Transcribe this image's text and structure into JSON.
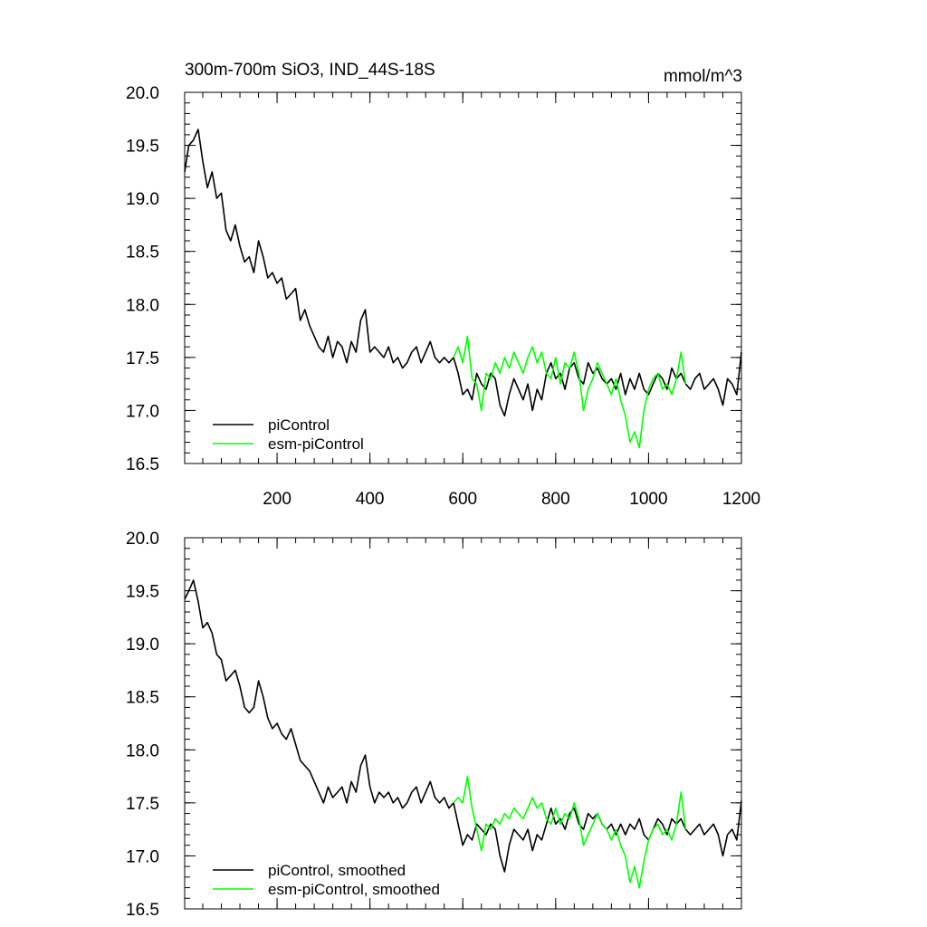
{
  "chart_data": [
    {
      "type": "line",
      "title": "300m-700m SiO3, IND_44S-18S",
      "units": "mmol/m^3",
      "xlim": [
        1,
        1200
      ],
      "ylim": [
        16.5,
        20.0
      ],
      "xticks": [
        200,
        400,
        600,
        800,
        1000,
        1200
      ],
      "xtick_labels": [
        "200",
        "400",
        "600",
        "800",
        "1000",
        "1200"
      ],
      "yticks": [
        16.5,
        17.0,
        17.5,
        18.0,
        18.5,
        19.0,
        19.5,
        20.0
      ],
      "ytick_labels": [
        "16.5",
        "17.0",
        "17.5",
        "18.0",
        "18.5",
        "19.0",
        "19.5",
        "20.0"
      ],
      "grid": false,
      "legend_position": "bottom-left",
      "series": [
        {
          "name": "piControl",
          "color": "#000000",
          "x": [
            1,
            10,
            20,
            30,
            40,
            50,
            60,
            70,
            80,
            90,
            100,
            110,
            120,
            130,
            140,
            150,
            160,
            170,
            180,
            190,
            200,
            210,
            220,
            230,
            240,
            250,
            260,
            270,
            280,
            290,
            300,
            310,
            320,
            330,
            340,
            350,
            360,
            370,
            380,
            390,
            400,
            410,
            420,
            430,
            440,
            450,
            460,
            470,
            480,
            490,
            500,
            510,
            520,
            530,
            540,
            550,
            560,
            570,
            580,
            590,
            600,
            610,
            620,
            630,
            640,
            650,
            660,
            670,
            680,
            690,
            700,
            710,
            720,
            730,
            740,
            750,
            760,
            770,
            780,
            790,
            800,
            810,
            820,
            830,
            840,
            850,
            860,
            870,
            880,
            890,
            900,
            910,
            920,
            930,
            940,
            950,
            960,
            970,
            980,
            990,
            1000,
            1010,
            1020,
            1030,
            1040,
            1050,
            1060,
            1070,
            1080,
            1090,
            1100,
            1110,
            1120,
            1130,
            1140,
            1150,
            1160,
            1170,
            1180,
            1190,
            1200
          ],
          "y": [
            19.25,
            19.5,
            19.55,
            19.65,
            19.35,
            19.1,
            19.25,
            19.0,
            19.05,
            18.7,
            18.6,
            18.75,
            18.55,
            18.4,
            18.45,
            18.3,
            18.6,
            18.45,
            18.25,
            18.3,
            18.2,
            18.25,
            18.05,
            18.1,
            18.15,
            17.85,
            17.95,
            17.8,
            17.7,
            17.6,
            17.55,
            17.7,
            17.5,
            17.65,
            17.6,
            17.45,
            17.65,
            17.55,
            17.85,
            17.95,
            17.55,
            17.6,
            17.55,
            17.5,
            17.6,
            17.45,
            17.5,
            17.4,
            17.45,
            17.55,
            17.6,
            17.45,
            17.55,
            17.65,
            17.5,
            17.45,
            17.5,
            17.45,
            17.5,
            17.35,
            17.15,
            17.2,
            17.1,
            17.35,
            17.25,
            17.2,
            17.35,
            17.3,
            17.05,
            16.95,
            17.15,
            17.3,
            17.2,
            17.1,
            17.25,
            17.0,
            17.2,
            17.1,
            17.35,
            17.45,
            17.3,
            17.35,
            17.2,
            17.4,
            17.45,
            17.3,
            17.25,
            17.45,
            17.35,
            17.4,
            17.3,
            17.25,
            17.3,
            17.2,
            17.35,
            17.15,
            17.3,
            17.2,
            17.35,
            17.2,
            17.15,
            17.25,
            17.35,
            17.3,
            17.2,
            17.4,
            17.3,
            17.35,
            17.25,
            17.2,
            17.3,
            17.35,
            17.2,
            17.25,
            17.3,
            17.2,
            17.05,
            17.3,
            17.25,
            17.15,
            17.55
          ]
        },
        {
          "name": "esm-piControl",
          "color": "#00ff00",
          "x": [
            580,
            590,
            600,
            610,
            620,
            630,
            640,
            650,
            660,
            670,
            680,
            690,
            700,
            710,
            720,
            730,
            740,
            750,
            760,
            770,
            780,
            790,
            800,
            810,
            820,
            830,
            840,
            850,
            860,
            870,
            880,
            890,
            900,
            910,
            920,
            930,
            940,
            950,
            960,
            970,
            980,
            990,
            1000,
            1010,
            1020,
            1030,
            1040,
            1050,
            1060,
            1070,
            1080
          ],
          "y": [
            17.5,
            17.6,
            17.45,
            17.7,
            17.3,
            17.25,
            17.0,
            17.35,
            17.3,
            17.45,
            17.35,
            17.5,
            17.4,
            17.55,
            17.45,
            17.35,
            17.5,
            17.6,
            17.45,
            17.55,
            17.35,
            17.3,
            17.5,
            17.25,
            17.45,
            17.4,
            17.55,
            17.35,
            17.0,
            17.2,
            17.3,
            17.45,
            17.35,
            17.25,
            17.15,
            17.3,
            17.1,
            16.95,
            16.7,
            16.8,
            16.65,
            17.0,
            17.2,
            17.3,
            17.35,
            17.2,
            17.25,
            17.15,
            17.3,
            17.55,
            17.25
          ]
        }
      ]
    },
    {
      "type": "line",
      "xlim": [
        1,
        1200
      ],
      "ylim": [
        16.5,
        20.0
      ],
      "xticks": [
        200,
        400,
        600,
        800,
        1000,
        1200
      ],
      "yticks": [
        16.5,
        17.0,
        17.5,
        18.0,
        18.5,
        19.0,
        19.5,
        20.0
      ],
      "ytick_labels": [
        "16.5",
        "17.0",
        "17.5",
        "18.0",
        "18.5",
        "19.0",
        "19.5",
        "20.0"
      ],
      "grid": false,
      "legend_position": "bottom-left",
      "series": [
        {
          "name": "piControl, smoothed",
          "color": "#000000",
          "x": [
            1,
            10,
            20,
            30,
            40,
            50,
            60,
            70,
            80,
            90,
            100,
            110,
            120,
            130,
            140,
            150,
            160,
            170,
            180,
            190,
            200,
            210,
            220,
            230,
            240,
            250,
            260,
            270,
            280,
            290,
            300,
            310,
            320,
            330,
            340,
            350,
            360,
            370,
            380,
            390,
            400,
            410,
            420,
            430,
            440,
            450,
            460,
            470,
            480,
            490,
            500,
            510,
            520,
            530,
            540,
            550,
            560,
            570,
            580,
            590,
            600,
            610,
            620,
            630,
            640,
            650,
            660,
            670,
            680,
            690,
            700,
            710,
            720,
            730,
            740,
            750,
            760,
            770,
            780,
            790,
            800,
            810,
            820,
            830,
            840,
            850,
            860,
            870,
            880,
            890,
            900,
            910,
            920,
            930,
            940,
            950,
            960,
            970,
            980,
            990,
            1000,
            1010,
            1020,
            1030,
            1040,
            1050,
            1060,
            1070,
            1080,
            1090,
            1100,
            1110,
            1120,
            1130,
            1140,
            1150,
            1160,
            1170,
            1180,
            1190,
            1200
          ],
          "y": [
            19.42,
            19.5,
            19.6,
            19.4,
            19.15,
            19.2,
            19.1,
            18.9,
            18.85,
            18.65,
            18.7,
            18.75,
            18.6,
            18.4,
            18.35,
            18.4,
            18.65,
            18.5,
            18.3,
            18.2,
            18.25,
            18.15,
            18.1,
            18.2,
            18.05,
            17.9,
            17.85,
            17.8,
            17.7,
            17.6,
            17.5,
            17.65,
            17.55,
            17.6,
            17.65,
            17.5,
            17.7,
            17.6,
            17.85,
            17.95,
            17.65,
            17.5,
            17.6,
            17.55,
            17.6,
            17.5,
            17.55,
            17.45,
            17.5,
            17.6,
            17.65,
            17.5,
            17.6,
            17.7,
            17.55,
            17.5,
            17.55,
            17.45,
            17.5,
            17.3,
            17.1,
            17.2,
            17.15,
            17.3,
            17.25,
            17.2,
            17.3,
            17.25,
            17.0,
            16.85,
            17.1,
            17.25,
            17.2,
            17.15,
            17.25,
            17.05,
            17.2,
            17.15,
            17.3,
            17.45,
            17.3,
            17.35,
            17.25,
            17.4,
            17.45,
            17.3,
            17.25,
            17.4,
            17.35,
            17.4,
            17.3,
            17.25,
            17.3,
            17.2,
            17.3,
            17.2,
            17.3,
            17.25,
            17.35,
            17.2,
            17.15,
            17.25,
            17.35,
            17.3,
            17.2,
            17.35,
            17.3,
            17.35,
            17.25,
            17.2,
            17.25,
            17.3,
            17.2,
            17.25,
            17.3,
            17.2,
            17.0,
            17.2,
            17.25,
            17.15,
            17.52
          ]
        },
        {
          "name": "esm-piControl, smoothed",
          "color": "#00ff00",
          "x": [
            580,
            590,
            600,
            610,
            620,
            630,
            640,
            650,
            660,
            670,
            680,
            690,
            700,
            710,
            720,
            730,
            740,
            750,
            760,
            770,
            780,
            790,
            800,
            810,
            820,
            830,
            840,
            850,
            860,
            870,
            880,
            890,
            900,
            910,
            920,
            930,
            940,
            950,
            960,
            970,
            980,
            990,
            1000,
            1010,
            1020,
            1030,
            1040,
            1050,
            1060,
            1070,
            1080
          ],
          "y": [
            17.5,
            17.55,
            17.5,
            17.75,
            17.45,
            17.25,
            17.05,
            17.3,
            17.25,
            17.35,
            17.3,
            17.4,
            17.35,
            17.45,
            17.4,
            17.35,
            17.45,
            17.55,
            17.45,
            17.5,
            17.35,
            17.3,
            17.45,
            17.3,
            17.4,
            17.35,
            17.5,
            17.35,
            17.1,
            17.2,
            17.3,
            17.4,
            17.3,
            17.25,
            17.15,
            17.25,
            17.1,
            17.0,
            16.75,
            16.9,
            16.7,
            16.95,
            17.15,
            17.25,
            17.3,
            17.2,
            17.25,
            17.15,
            17.3,
            17.6,
            17.25
          ]
        }
      ]
    }
  ]
}
